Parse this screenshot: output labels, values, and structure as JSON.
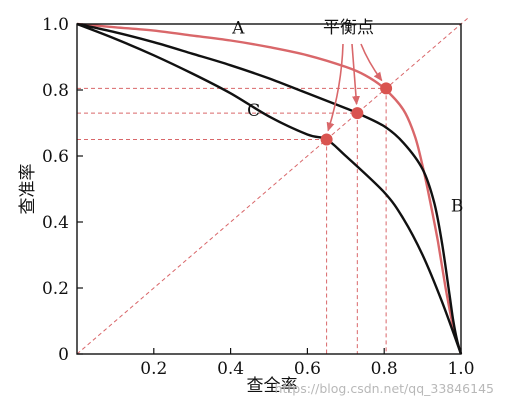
{
  "chart_data": {
    "type": "line",
    "xlabel": "查全率",
    "ylabel": "查准率",
    "xlim": [
      0,
      1
    ],
    "ylim": [
      0,
      1
    ],
    "xticks": [
      "0.2",
      "0.4",
      "0.6",
      "0.8",
      "1.0"
    ],
    "yticks": [
      "0",
      "0.2",
      "0.4",
      "0.6",
      "0.8",
      "1.0"
    ],
    "grid": false,
    "series": [
      {
        "name": "A",
        "color": "#d9676a",
        "x": [
          0,
          0.1,
          0.2,
          0.3,
          0.4,
          0.5,
          0.6,
          0.7,
          0.75,
          0.8,
          0.85,
          0.88,
          0.9,
          0.92,
          0.94,
          0.96,
          0.98,
          1.0
        ],
        "y": [
          1.0,
          0.99,
          0.98,
          0.965,
          0.95,
          0.93,
          0.905,
          0.87,
          0.845,
          0.805,
          0.74,
          0.66,
          0.57,
          0.46,
          0.34,
          0.2,
          0.08,
          0.0
        ]
      },
      {
        "name": "B",
        "color": "#111111",
        "x": [
          0,
          0.1,
          0.2,
          0.3,
          0.4,
          0.5,
          0.6,
          0.7,
          0.73,
          0.8,
          0.85,
          0.9,
          0.93,
          0.95,
          0.97,
          0.98,
          0.99,
          1.0
        ],
        "y": [
          1.0,
          0.975,
          0.945,
          0.91,
          0.875,
          0.835,
          0.79,
          0.745,
          0.73,
          0.69,
          0.64,
          0.56,
          0.46,
          0.34,
          0.18,
          0.1,
          0.04,
          0.0
        ]
      },
      {
        "name": "C",
        "color": "#111111",
        "x": [
          0,
          0.1,
          0.2,
          0.3,
          0.4,
          0.5,
          0.6,
          0.65,
          0.7,
          0.8,
          0.85,
          0.9,
          0.95,
          1.0
        ],
        "y": [
          1.0,
          0.955,
          0.905,
          0.85,
          0.79,
          0.72,
          0.665,
          0.65,
          0.6,
          0.49,
          0.41,
          0.3,
          0.16,
          0.0
        ]
      }
    ],
    "reference_line": {
      "x": [
        0,
        1.02
      ],
      "y": [
        0,
        1.02
      ],
      "style": "dashed",
      "color": "#d9676a"
    },
    "break_even_points": [
      {
        "x": 0.65,
        "y": 0.65
      },
      {
        "x": 0.73,
        "y": 0.73
      },
      {
        "x": 0.805,
        "y": 0.805
      }
    ],
    "curve_labels": [
      {
        "text": "A",
        "x": 0.42,
        "y": 0.99
      },
      {
        "text": "B",
        "x": 0.99,
        "y": 0.45
      },
      {
        "text": "C",
        "x": 0.46,
        "y": 0.74
      }
    ],
    "annotation": {
      "text": "平衡点"
    },
    "point_color": "#d9534f",
    "watermark": "https://blog.csdn.net/qq_33846145"
  }
}
